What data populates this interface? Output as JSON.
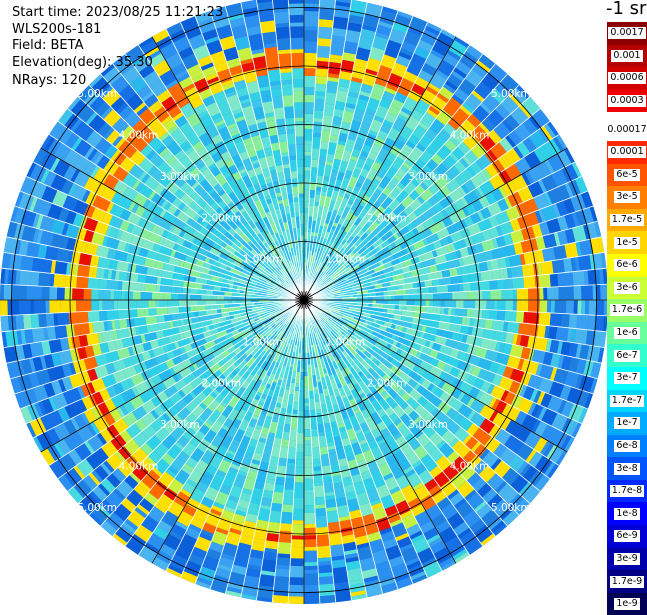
{
  "info": {
    "start_time": "Start time: 2023/08/25 11:21:23",
    "instrument": "WLS200s-181",
    "field": "Field: BETA",
    "elevation": "Elevation(deg): 35.30",
    "nrays": "NRays: 120"
  },
  "legend": {
    "unit": "-1 sr",
    "high_group": [
      {
        "label": "0.0017",
        "color": "#8c0000"
      },
      {
        "label": "0.001",
        "color": "#b40000"
      },
      {
        "label": "0.0006",
        "color": "#d40000"
      },
      {
        "label": "0.0003",
        "color": "#ef0000"
      }
    ],
    "low_group": [
      {
        "label": "0.00017",
        "color": "#ffffff"
      },
      {
        "label": "0.0001",
        "color": "#ff2a00"
      },
      {
        "label": "6e-5",
        "color": "#ff5500"
      },
      {
        "label": "3e-5",
        "color": "#ff8000"
      },
      {
        "label": "1.7e-5",
        "color": "#ffaa00"
      },
      {
        "label": "1e-5",
        "color": "#ffd400"
      },
      {
        "label": "6e-6",
        "color": "#ffff00"
      },
      {
        "label": "3e-6",
        "color": "#ccff33"
      },
      {
        "label": "1.7e-6",
        "color": "#99ff66"
      },
      {
        "label": "1e-6",
        "color": "#66ff99"
      },
      {
        "label": "6e-7",
        "color": "#33ffcc"
      },
      {
        "label": "3e-7",
        "color": "#00ffff"
      },
      {
        "label": "1.7e-7",
        "color": "#00d4ff"
      },
      {
        "label": "1e-7",
        "color": "#00aaff"
      },
      {
        "label": "6e-8",
        "color": "#0080ff"
      },
      {
        "label": "3e-8",
        "color": "#0055ff"
      },
      {
        "label": "1.7e-8",
        "color": "#002aff"
      },
      {
        "label": "1e-8",
        "color": "#0000ff"
      },
      {
        "label": "6e-9",
        "color": "#0000d4"
      },
      {
        "label": "3e-9",
        "color": "#0000aa"
      },
      {
        "label": "1.7e-9",
        "color": "#000080"
      },
      {
        "label": "1e-9",
        "color": "#000055"
      }
    ]
  },
  "range_labels": [
    "1.00km",
    "2.00km",
    "3.00km",
    "4.00km",
    "5.00km"
  ],
  "plot": {
    "rays": 120,
    "max_range_km": 5.2,
    "ring_spacing_km": 1.0,
    "colors": {
      "background_blue": "#1e7fe0",
      "inner_cyan": "#2fd0e8",
      "ring_yellow": "#ffe000",
      "ring_orange": "#ff6a00",
      "ring_red": "#e81000",
      "grid": "#000000",
      "ray_gap": "#ffffff"
    }
  }
}
